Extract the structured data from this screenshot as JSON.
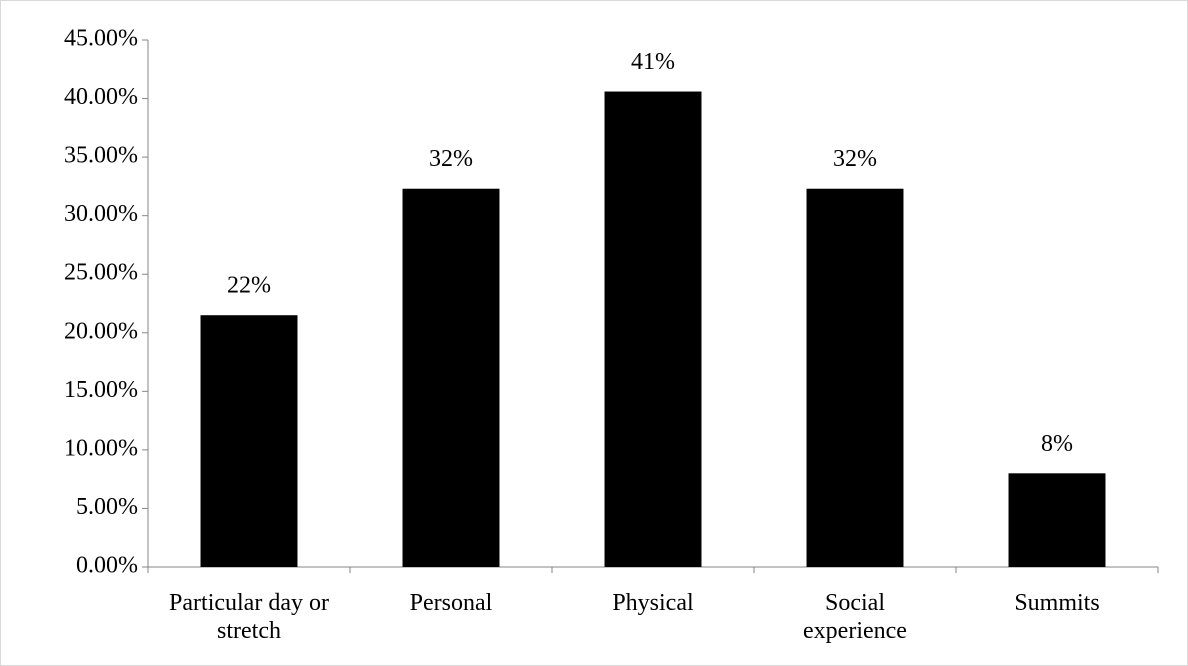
{
  "chart_data": {
    "type": "bar",
    "categories": [
      "Particular day or stretch",
      "Personal",
      "Physical",
      "Social experience",
      "Summits"
    ],
    "values": [
      21.5,
      32.3,
      40.6,
      32.3,
      8.0
    ],
    "value_labels": [
      "22%",
      "32%",
      "41%",
      "32%",
      "8%"
    ],
    "color": "#000000",
    "ylim": [
      0,
      45
    ],
    "yticks": [
      {
        "value": 0,
        "label": "0.00%"
      },
      {
        "value": 5,
        "label": "5.00%"
      },
      {
        "value": 10,
        "label": "10.00%"
      },
      {
        "value": 15,
        "label": "15.00%"
      },
      {
        "value": 20,
        "label": "20.00%"
      },
      {
        "value": 25,
        "label": "25.00%"
      },
      {
        "value": 30,
        "label": "30.00%"
      },
      {
        "value": 35,
        "label": "35.00%"
      },
      {
        "value": 40,
        "label": "40.00%"
      },
      {
        "value": 45,
        "label": "45.00%"
      }
    ],
    "grid": false
  }
}
